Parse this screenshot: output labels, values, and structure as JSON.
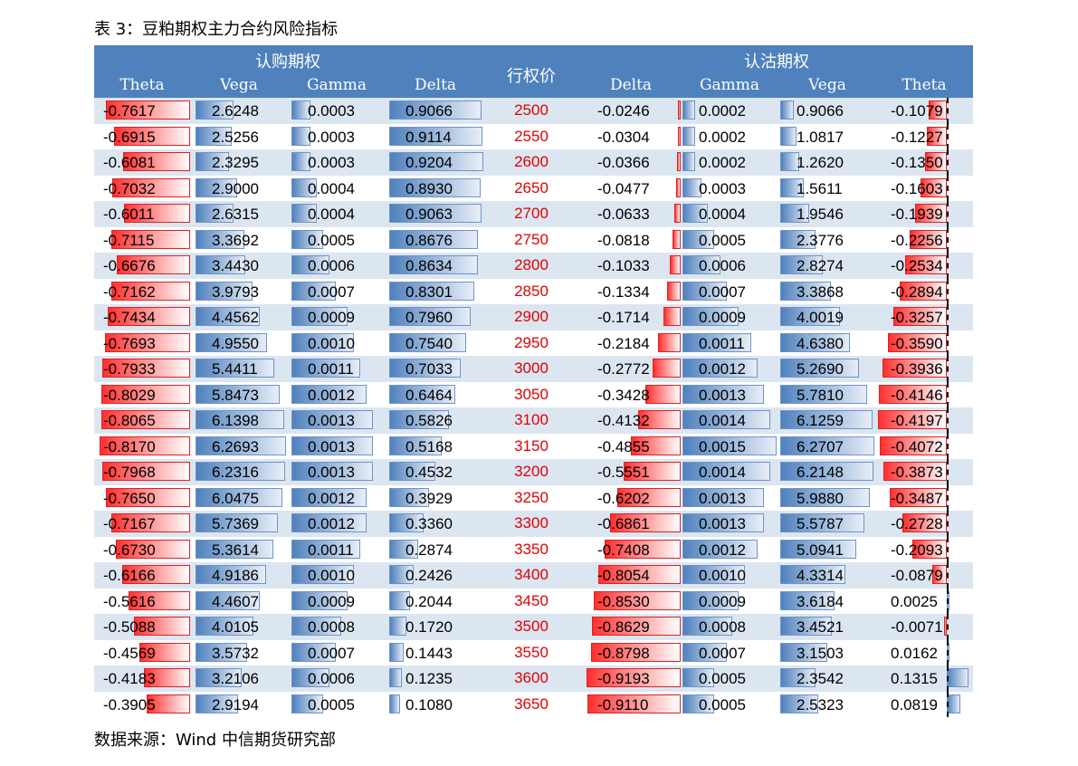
{
  "caption": "表 3：豆粕期权主力合约风险指标",
  "source": "数据来源：Wind  中信期货研究部",
  "header": {
    "call_group": "认购期权",
    "put_group": "认沽期权",
    "strike_label": "行权价",
    "call_cols": [
      "Theta",
      "Vega",
      "Gamma",
      "Delta"
    ],
    "put_cols": [
      "Delta",
      "Gamma",
      "Vega",
      "Theta"
    ]
  },
  "rows": [
    {
      "strike": "2500",
      "c_theta": "-0.7617",
      "c_vega": "2.6248",
      "c_gamma": "0.0003",
      "c_delta": "0.9066",
      "p_delta": "-0.0246",
      "p_gamma": "0.0002",
      "p_vega": "0.9066",
      "p_theta": "-0.1079"
    },
    {
      "strike": "2550",
      "c_theta": "-0.6915",
      "c_vega": "2.5256",
      "c_gamma": "0.0003",
      "c_delta": "0.9114",
      "p_delta": "-0.0304",
      "p_gamma": "0.0002",
      "p_vega": "1.0817",
      "p_theta": "-0.1227"
    },
    {
      "strike": "2600",
      "c_theta": "-0.6081",
      "c_vega": "2.3295",
      "c_gamma": "0.0003",
      "c_delta": "0.9204",
      "p_delta": "-0.0366",
      "p_gamma": "0.0002",
      "p_vega": "1.2620",
      "p_theta": "-0.1350"
    },
    {
      "strike": "2650",
      "c_theta": "-0.7032",
      "c_vega": "2.9000",
      "c_gamma": "0.0004",
      "c_delta": "0.8930",
      "p_delta": "-0.0477",
      "p_gamma": "0.0003",
      "p_vega": "1.5611",
      "p_theta": "-0.1603"
    },
    {
      "strike": "2700",
      "c_theta": "-0.6011",
      "c_vega": "2.6315",
      "c_gamma": "0.0004",
      "c_delta": "0.9063",
      "p_delta": "-0.0633",
      "p_gamma": "0.0004",
      "p_vega": "1.9546",
      "p_theta": "-0.1939"
    },
    {
      "strike": "2750",
      "c_theta": "-0.7115",
      "c_vega": "3.3692",
      "c_gamma": "0.0005",
      "c_delta": "0.8676",
      "p_delta": "-0.0818",
      "p_gamma": "0.0005",
      "p_vega": "2.3776",
      "p_theta": "-0.2256"
    },
    {
      "strike": "2800",
      "c_theta": "-0.6676",
      "c_vega": "3.4430",
      "c_gamma": "0.0006",
      "c_delta": "0.8634",
      "p_delta": "-0.1033",
      "p_gamma": "0.0006",
      "p_vega": "2.8274",
      "p_theta": "-0.2534"
    },
    {
      "strike": "2850",
      "c_theta": "-0.7162",
      "c_vega": "3.9793",
      "c_gamma": "0.0007",
      "c_delta": "0.8301",
      "p_delta": "-0.1334",
      "p_gamma": "0.0007",
      "p_vega": "3.3868",
      "p_theta": "-0.2894"
    },
    {
      "strike": "2900",
      "c_theta": "-0.7434",
      "c_vega": "4.4562",
      "c_gamma": "0.0009",
      "c_delta": "0.7960",
      "p_delta": "-0.1714",
      "p_gamma": "0.0009",
      "p_vega": "4.0019",
      "p_theta": "-0.3257"
    },
    {
      "strike": "2950",
      "c_theta": "-0.7693",
      "c_vega": "4.9550",
      "c_gamma": "0.0010",
      "c_delta": "0.7540",
      "p_delta": "-0.2184",
      "p_gamma": "0.0011",
      "p_vega": "4.6380",
      "p_theta": "-0.3590"
    },
    {
      "strike": "3000",
      "c_theta": "-0.7933",
      "c_vega": "5.4411",
      "c_gamma": "0.0011",
      "c_delta": "0.7033",
      "p_delta": "-0.2772",
      "p_gamma": "0.0012",
      "p_vega": "5.2690",
      "p_theta": "-0.3936"
    },
    {
      "strike": "3050",
      "c_theta": "-0.8029",
      "c_vega": "5.8473",
      "c_gamma": "0.0012",
      "c_delta": "0.6464",
      "p_delta": "-0.3428",
      "p_gamma": "0.0013",
      "p_vega": "5.7810",
      "p_theta": "-0.4146"
    },
    {
      "strike": "3100",
      "c_theta": "-0.8065",
      "c_vega": "6.1398",
      "c_gamma": "0.0013",
      "c_delta": "0.5826",
      "p_delta": "-0.4132",
      "p_gamma": "0.0014",
      "p_vega": "6.1259",
      "p_theta": "-0.4197"
    },
    {
      "strike": "3150",
      "c_theta": "-0.8170",
      "c_vega": "6.2693",
      "c_gamma": "0.0013",
      "c_delta": "0.5168",
      "p_delta": "-0.4855",
      "p_gamma": "0.0015",
      "p_vega": "6.2707",
      "p_theta": "-0.4072"
    },
    {
      "strike": "3200",
      "c_theta": "-0.7968",
      "c_vega": "6.2316",
      "c_gamma": "0.0013",
      "c_delta": "0.4532",
      "p_delta": "-0.5551",
      "p_gamma": "0.0014",
      "p_vega": "6.2148",
      "p_theta": "-0.3873"
    },
    {
      "strike": "3250",
      "c_theta": "-0.7650",
      "c_vega": "6.0475",
      "c_gamma": "0.0012",
      "c_delta": "0.3929",
      "p_delta": "-0.6202",
      "p_gamma": "0.0013",
      "p_vega": "5.9880",
      "p_theta": "-0.3487"
    },
    {
      "strike": "3300",
      "c_theta": "-0.7167",
      "c_vega": "5.7369",
      "c_gamma": "0.0012",
      "c_delta": "0.3360",
      "p_delta": "-0.6861",
      "p_gamma": "0.0013",
      "p_vega": "5.5787",
      "p_theta": "-0.2728"
    },
    {
      "strike": "3350",
      "c_theta": "-0.6730",
      "c_vega": "5.3614",
      "c_gamma": "0.0011",
      "c_delta": "0.2874",
      "p_delta": "-0.7408",
      "p_gamma": "0.0012",
      "p_vega": "5.0941",
      "p_theta": "-0.2093"
    },
    {
      "strike": "3400",
      "c_theta": "-0.6166",
      "c_vega": "4.9186",
      "c_gamma": "0.0010",
      "c_delta": "0.2426",
      "p_delta": "-0.8054",
      "p_gamma": "0.0010",
      "p_vega": "4.3314",
      "p_theta": "-0.0879"
    },
    {
      "strike": "3450",
      "c_theta": "-0.5616",
      "c_vega": "4.4607",
      "c_gamma": "0.0009",
      "c_delta": "0.2044",
      "p_delta": "-0.8530",
      "p_gamma": "0.0009",
      "p_vega": "3.6184",
      "p_theta": "0.0025"
    },
    {
      "strike": "3500",
      "c_theta": "-0.5088",
      "c_vega": "4.0105",
      "c_gamma": "0.0008",
      "c_delta": "0.1720",
      "p_delta": "-0.8629",
      "p_gamma": "0.0008",
      "p_vega": "3.4521",
      "p_theta": "-0.0071"
    },
    {
      "strike": "3550",
      "c_theta": "-0.4569",
      "c_vega": "3.5732",
      "c_gamma": "0.0007",
      "c_delta": "0.1443",
      "p_delta": "-0.8798",
      "p_gamma": "0.0007",
      "p_vega": "3.1503",
      "p_theta": "0.0162"
    },
    {
      "strike": "3600",
      "c_theta": "-0.4183",
      "c_vega": "3.2106",
      "c_gamma": "0.0006",
      "c_delta": "0.1235",
      "p_delta": "-0.9193",
      "p_gamma": "0.0005",
      "p_vega": "2.3542",
      "p_theta": "0.1315"
    },
    {
      "strike": "3650",
      "c_theta": "-0.3905",
      "c_vega": "2.9194",
      "c_gamma": "0.0005",
      "c_delta": "0.1080",
      "p_delta": "-0.9110",
      "p_gamma": "0.0005",
      "p_vega": "2.5323",
      "p_theta": "0.0819"
    }
  ]
}
